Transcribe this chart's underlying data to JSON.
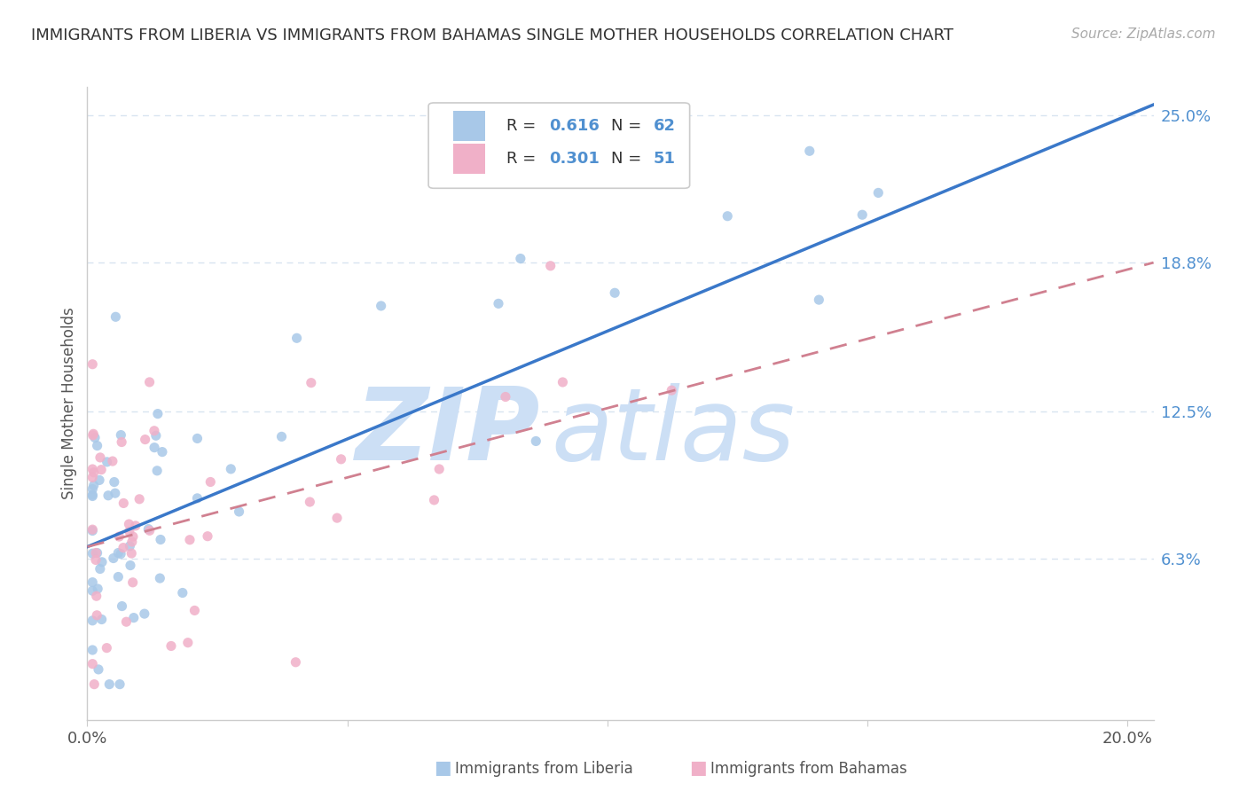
{
  "title": "IMMIGRANTS FROM LIBERIA VS IMMIGRANTS FROM BAHAMAS SINGLE MOTHER HOUSEHOLDS CORRELATION CHART",
  "source": "Source: ZipAtlas.com",
  "xlabel_liberia": "Immigrants from Liberia",
  "xlabel_bahamas": "Immigrants from Bahamas",
  "ylabel": "Single Mother Households",
  "r_liberia": 0.616,
  "n_liberia": 62,
  "r_bahamas": 0.301,
  "n_bahamas": 51,
  "xlim": [
    0.0,
    0.205
  ],
  "ylim": [
    -0.005,
    0.262
  ],
  "ytick_vals": [
    0.063,
    0.125,
    0.188,
    0.25
  ],
  "ytick_labels": [
    "6.3%",
    "12.5%",
    "18.8%",
    "25.0%"
  ],
  "xtick_vals": [
    0.0,
    0.05,
    0.1,
    0.15,
    0.2
  ],
  "xtick_labels": [
    "0.0%",
    "",
    "",
    "",
    "20.0%"
  ],
  "color_liberia": "#a8c8e8",
  "color_bahamas": "#f0b0c8",
  "color_line_liberia": "#3a78c9",
  "color_line_bahamas": "#d08090",
  "watermark_zip": "ZIP",
  "watermark_atlas": "atlas",
  "watermark_color": "#ccdff5",
  "background_color": "#ffffff",
  "grid_color": "#d8e4f0",
  "axis_color": "#cccccc",
  "label_color": "#5090d0",
  "text_color": "#555555",
  "line_intercept_liberia": 0.068,
  "line_slope_liberia": 0.92,
  "line_intercept_bahamas": 0.072,
  "line_slope_bahamas": 0.56
}
